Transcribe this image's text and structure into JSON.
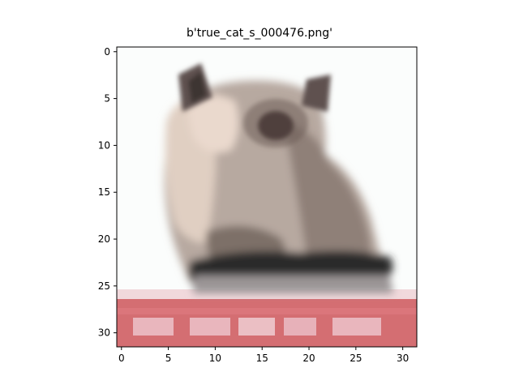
{
  "title": "b'true_cat_s_000476.png'",
  "image": {
    "content": "pixelated photo of a fluffy cat sitting on a red and white patterned surface",
    "resolution": [
      32,
      32
    ],
    "palette": {
      "background": "#fbfdfc",
      "fur_light": "#e0cfc2",
      "fur_mid": "#b7a9a0",
      "fur_shadow": "#7d6f67",
      "dark_shade": "#2b2a2a",
      "eye": "#2e1f1d",
      "shelf_pink": "#f1d9dc",
      "shelf_red": "#d46e72",
      "shelf_highlight": "#e9b6bd"
    }
  },
  "chart_data": {
    "type": "image",
    "title": "b'true_cat_s_000476.png'",
    "xlim": [
      -0.5,
      31.5
    ],
    "ylim": [
      31.5,
      -0.5
    ],
    "x_ticks": [
      0,
      5,
      10,
      15,
      20,
      25,
      30
    ],
    "y_ticks": [
      0,
      5,
      10,
      15,
      20,
      25,
      30
    ]
  }
}
